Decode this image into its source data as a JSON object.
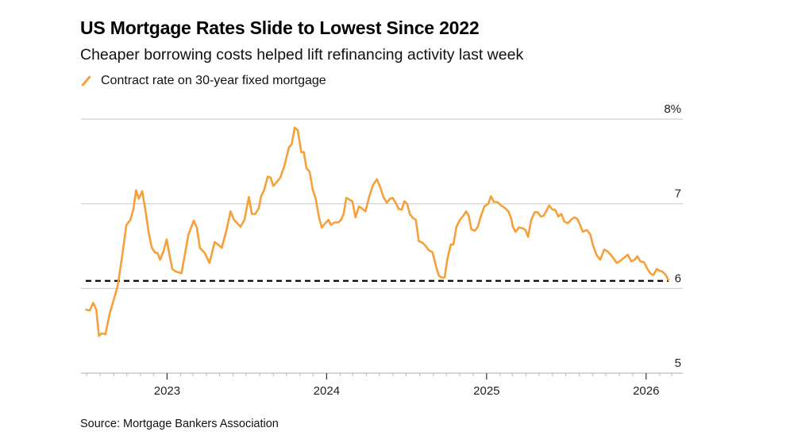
{
  "header": {
    "title": "US Mortgage Rates Slide to Lowest Since 2022",
    "subtitle": "Cheaper borrowing costs helped lift refinancing activity last week"
  },
  "footer": {
    "source": "Source: Mortgage Bankers Association"
  },
  "chart_data": {
    "type": "line",
    "title": "US Mortgage Rates Slide to Lowest Since 2022",
    "subtitle": "Cheaper borrowing costs helped lift refinancing activity last week",
    "xlabel": "",
    "ylabel": "",
    "xlim": [
      "2022-06-18",
      "2026-03-26"
    ],
    "ylim": [
      5,
      8
    ],
    "x_ticks": [
      {
        "date": "2023-01-01",
        "label": "2023"
      },
      {
        "date": "2024-01-01",
        "label": "2024"
      },
      {
        "date": "2025-01-01",
        "label": "2025"
      },
      {
        "date": "2026-01-01",
        "label": "2026"
      }
    ],
    "minor_ticks": "monthly",
    "y_ticks": [
      {
        "value": 8,
        "label": "8%"
      },
      {
        "value": 7,
        "label": "7"
      },
      {
        "value": 6,
        "label": "6"
      },
      {
        "value": 5,
        "label": "5"
      }
    ],
    "grid": "horizontal",
    "legend_position": "top-left",
    "reference_line": {
      "value": 6.09,
      "style": "dashed",
      "color": "#000000"
    },
    "series": [
      {
        "name": "Contract rate on 30-year fixed mortgage",
        "color": "#f5a03a",
        "points": [
          [
            "2022-06-30",
            5.75
          ],
          [
            "2022-07-08",
            5.74
          ],
          [
            "2022-07-16",
            5.83
          ],
          [
            "2022-07-23",
            5.75
          ],
          [
            "2022-07-29",
            5.44
          ],
          [
            "2022-08-04",
            5.47
          ],
          [
            "2022-08-13",
            5.46
          ],
          [
            "2022-08-22",
            5.69
          ],
          [
            "2022-09-01",
            5.87
          ],
          [
            "2022-09-10",
            6.03
          ],
          [
            "2022-09-19",
            6.34
          ],
          [
            "2022-09-30",
            6.75
          ],
          [
            "2022-10-09",
            6.81
          ],
          [
            "2022-10-16",
            6.94
          ],
          [
            "2022-10-22",
            7.16
          ],
          [
            "2022-10-28",
            7.06
          ],
          [
            "2022-11-05",
            7.15
          ],
          [
            "2022-11-12",
            6.94
          ],
          [
            "2022-11-20",
            6.66
          ],
          [
            "2022-11-27",
            6.48
          ],
          [
            "2022-12-05",
            6.42
          ],
          [
            "2022-12-10",
            6.42
          ],
          [
            "2022-12-16",
            6.34
          ],
          [
            "2022-12-24",
            6.44
          ],
          [
            "2022-12-31",
            6.58
          ],
          [
            "2023-01-06",
            6.41
          ],
          [
            "2023-01-13",
            6.23
          ],
          [
            "2023-01-21",
            6.2
          ],
          [
            "2023-02-03",
            6.18
          ],
          [
            "2023-02-11",
            6.41
          ],
          [
            "2023-02-19",
            6.64
          ],
          [
            "2023-03-03",
            6.8
          ],
          [
            "2023-03-10",
            6.72
          ],
          [
            "2023-03-17",
            6.48
          ],
          [
            "2023-03-28",
            6.42
          ],
          [
            "2023-04-08",
            6.3
          ],
          [
            "2023-04-20",
            6.55
          ],
          [
            "2023-04-27",
            6.52
          ],
          [
            "2023-05-06",
            6.48
          ],
          [
            "2023-05-17",
            6.69
          ],
          [
            "2023-05-26",
            6.91
          ],
          [
            "2023-06-03",
            6.81
          ],
          [
            "2023-06-18",
            6.73
          ],
          [
            "2023-06-27",
            6.81
          ],
          [
            "2023-07-07",
            7.08
          ],
          [
            "2023-07-14",
            6.88
          ],
          [
            "2023-07-22",
            6.88
          ],
          [
            "2023-07-30",
            6.95
          ],
          [
            "2023-08-04",
            7.09
          ],
          [
            "2023-08-11",
            7.16
          ],
          [
            "2023-08-19",
            7.32
          ],
          [
            "2023-08-26",
            7.31
          ],
          [
            "2023-09-01",
            7.21
          ],
          [
            "2023-09-11",
            7.27
          ],
          [
            "2023-09-17",
            7.31
          ],
          [
            "2023-09-26",
            7.44
          ],
          [
            "2023-10-07",
            7.67
          ],
          [
            "2023-10-13",
            7.7
          ],
          [
            "2023-10-20",
            7.9
          ],
          [
            "2023-10-27",
            7.87
          ],
          [
            "2023-11-04",
            7.61
          ],
          [
            "2023-11-10",
            7.61
          ],
          [
            "2023-11-16",
            7.42
          ],
          [
            "2023-11-23",
            7.38
          ],
          [
            "2023-11-30",
            7.17
          ],
          [
            "2023-12-07",
            7.06
          ],
          [
            "2023-12-15",
            6.83
          ],
          [
            "2023-12-21",
            6.72
          ],
          [
            "2023-12-29",
            6.77
          ],
          [
            "2024-01-05",
            6.81
          ],
          [
            "2024-01-11",
            6.75
          ],
          [
            "2024-01-19",
            6.78
          ],
          [
            "2024-01-28",
            6.78
          ],
          [
            "2024-02-03",
            6.81
          ],
          [
            "2024-02-09",
            6.88
          ],
          [
            "2024-02-15",
            7.07
          ],
          [
            "2024-02-29",
            7.03
          ],
          [
            "2024-03-07",
            6.84
          ],
          [
            "2024-03-15",
            6.97
          ],
          [
            "2024-03-23",
            6.94
          ],
          [
            "2024-03-30",
            6.91
          ],
          [
            "2024-04-07",
            7.08
          ],
          [
            "2024-04-16",
            7.22
          ],
          [
            "2024-04-25",
            7.29
          ],
          [
            "2024-05-03",
            7.19
          ],
          [
            "2024-05-10",
            7.08
          ],
          [
            "2024-05-18",
            7.01
          ],
          [
            "2024-05-25",
            7.06
          ],
          [
            "2024-05-31",
            7.07
          ],
          [
            "2024-06-06",
            7.02
          ],
          [
            "2024-06-14",
            6.94
          ],
          [
            "2024-06-21",
            6.93
          ],
          [
            "2024-06-27",
            7.03
          ],
          [
            "2024-07-03",
            7.0
          ],
          [
            "2024-07-10",
            6.87
          ],
          [
            "2024-07-17",
            6.83
          ],
          [
            "2024-07-23",
            6.81
          ],
          [
            "2024-07-30",
            6.56
          ],
          [
            "2024-08-07",
            6.54
          ],
          [
            "2024-08-15",
            6.5
          ],
          [
            "2024-08-22",
            6.45
          ],
          [
            "2024-08-30",
            6.43
          ],
          [
            "2024-09-08",
            6.25
          ],
          [
            "2024-09-14",
            6.15
          ],
          [
            "2024-09-20",
            6.13
          ],
          [
            "2024-09-27",
            6.13
          ],
          [
            "2024-10-03",
            6.34
          ],
          [
            "2024-10-11",
            6.52
          ],
          [
            "2024-10-17",
            6.52
          ],
          [
            "2024-10-24",
            6.73
          ],
          [
            "2024-11-01",
            6.81
          ],
          [
            "2024-11-09",
            6.86
          ],
          [
            "2024-11-15",
            6.91
          ],
          [
            "2024-11-21",
            6.86
          ],
          [
            "2024-11-27",
            6.7
          ],
          [
            "2024-12-05",
            6.68
          ],
          [
            "2024-12-12",
            6.73
          ],
          [
            "2024-12-20",
            6.87
          ],
          [
            "2024-12-27",
            6.97
          ],
          [
            "2025-01-05",
            7.0
          ],
          [
            "2025-01-11",
            7.09
          ],
          [
            "2025-01-18",
            7.02
          ],
          [
            "2025-01-26",
            7.02
          ],
          [
            "2025-02-03",
            6.98
          ],
          [
            "2025-02-12",
            6.95
          ],
          [
            "2025-02-20",
            6.91
          ],
          [
            "2025-02-26",
            6.83
          ],
          [
            "2025-03-02",
            6.73
          ],
          [
            "2025-03-08",
            6.67
          ],
          [
            "2025-03-16",
            6.72
          ],
          [
            "2025-03-25",
            6.71
          ],
          [
            "2025-03-31",
            6.69
          ],
          [
            "2025-04-06",
            6.61
          ],
          [
            "2025-04-13",
            6.81
          ],
          [
            "2025-04-21",
            6.9
          ],
          [
            "2025-04-28",
            6.9
          ],
          [
            "2025-05-05",
            6.85
          ],
          [
            "2025-05-12",
            6.86
          ],
          [
            "2025-05-24",
            6.98
          ],
          [
            "2025-06-01",
            6.93
          ],
          [
            "2025-06-07",
            6.93
          ],
          [
            "2025-06-14",
            6.85
          ],
          [
            "2025-06-21",
            6.88
          ],
          [
            "2025-06-28",
            6.79
          ],
          [
            "2025-07-06",
            6.77
          ],
          [
            "2025-07-13",
            6.81
          ],
          [
            "2025-07-21",
            6.84
          ],
          [
            "2025-07-28",
            6.82
          ],
          [
            "2025-08-03",
            6.75
          ],
          [
            "2025-08-09",
            6.67
          ],
          [
            "2025-08-18",
            6.69
          ],
          [
            "2025-08-26",
            6.64
          ],
          [
            "2025-09-02",
            6.5
          ],
          [
            "2025-09-10",
            6.39
          ],
          [
            "2025-09-18",
            6.34
          ],
          [
            "2025-09-27",
            6.46
          ],
          [
            "2025-10-04",
            6.44
          ],
          [
            "2025-10-12",
            6.4
          ],
          [
            "2025-10-26",
            6.3
          ],
          [
            "2025-11-04",
            6.33
          ],
          [
            "2025-11-20",
            6.4
          ],
          [
            "2025-11-28",
            6.32
          ],
          [
            "2025-12-06",
            6.34
          ],
          [
            "2025-12-12",
            6.38
          ],
          [
            "2025-12-19",
            6.32
          ],
          [
            "2025-12-27",
            6.31
          ],
          [
            "2026-01-04",
            6.23
          ],
          [
            "2026-01-12",
            6.17
          ],
          [
            "2026-01-18",
            6.16
          ],
          [
            "2026-01-25",
            6.23
          ],
          [
            "2026-01-31",
            6.21
          ],
          [
            "2026-02-07",
            6.2
          ],
          [
            "2026-02-15",
            6.16
          ],
          [
            "2026-02-21",
            6.1
          ]
        ]
      }
    ]
  }
}
